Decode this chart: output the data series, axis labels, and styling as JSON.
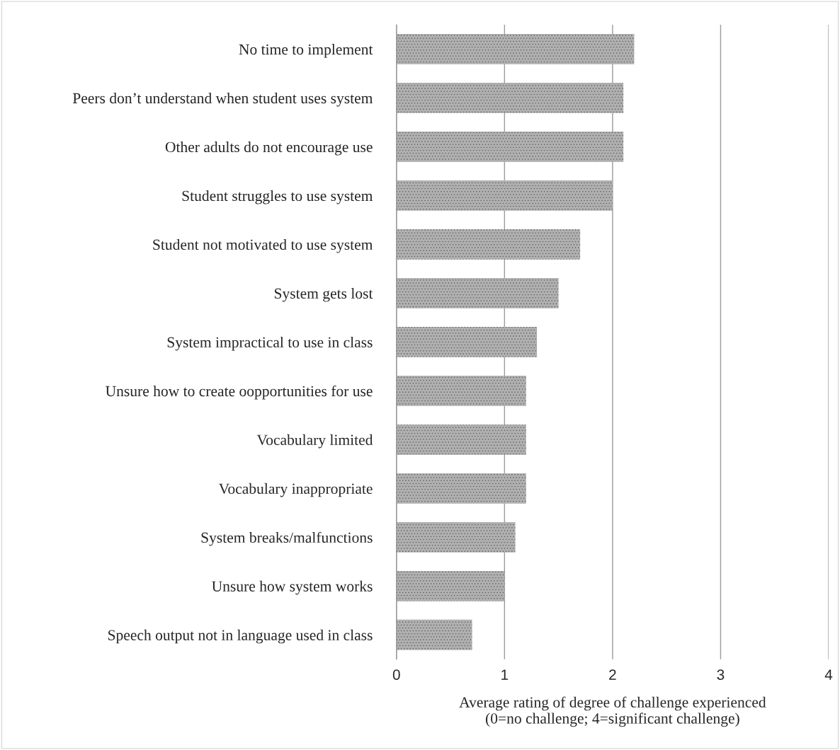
{
  "chart_data": {
    "type": "bar",
    "orientation": "horizontal",
    "categories": [
      "No time to implement",
      "Peers don’t understand when student uses system",
      "Other adults do not encourage use",
      "Student struggles to use system",
      "Student not motivated to use system",
      "System gets lost",
      "System impractical to use in class",
      "Unsure how to create oopportunities for use",
      "Vocabulary limited",
      "Vocabulary inappropriate",
      "System breaks/malfunctions",
      "Unsure how system works",
      "Speech output not in language used in class"
    ],
    "values": [
      2.2,
      2.1,
      2.1,
      2.0,
      1.7,
      1.5,
      1.3,
      1.2,
      1.2,
      1.2,
      1.1,
      1.0,
      0.7
    ],
    "color": "#b0b0b0",
    "xlim": [
      0,
      4
    ],
    "xticks": [
      0,
      1,
      2,
      3,
      4
    ],
    "grid": "x",
    "xlabel": "Average rating of degree of challenge experienced\n(0=no challenge; 4=significant challenge)"
  }
}
